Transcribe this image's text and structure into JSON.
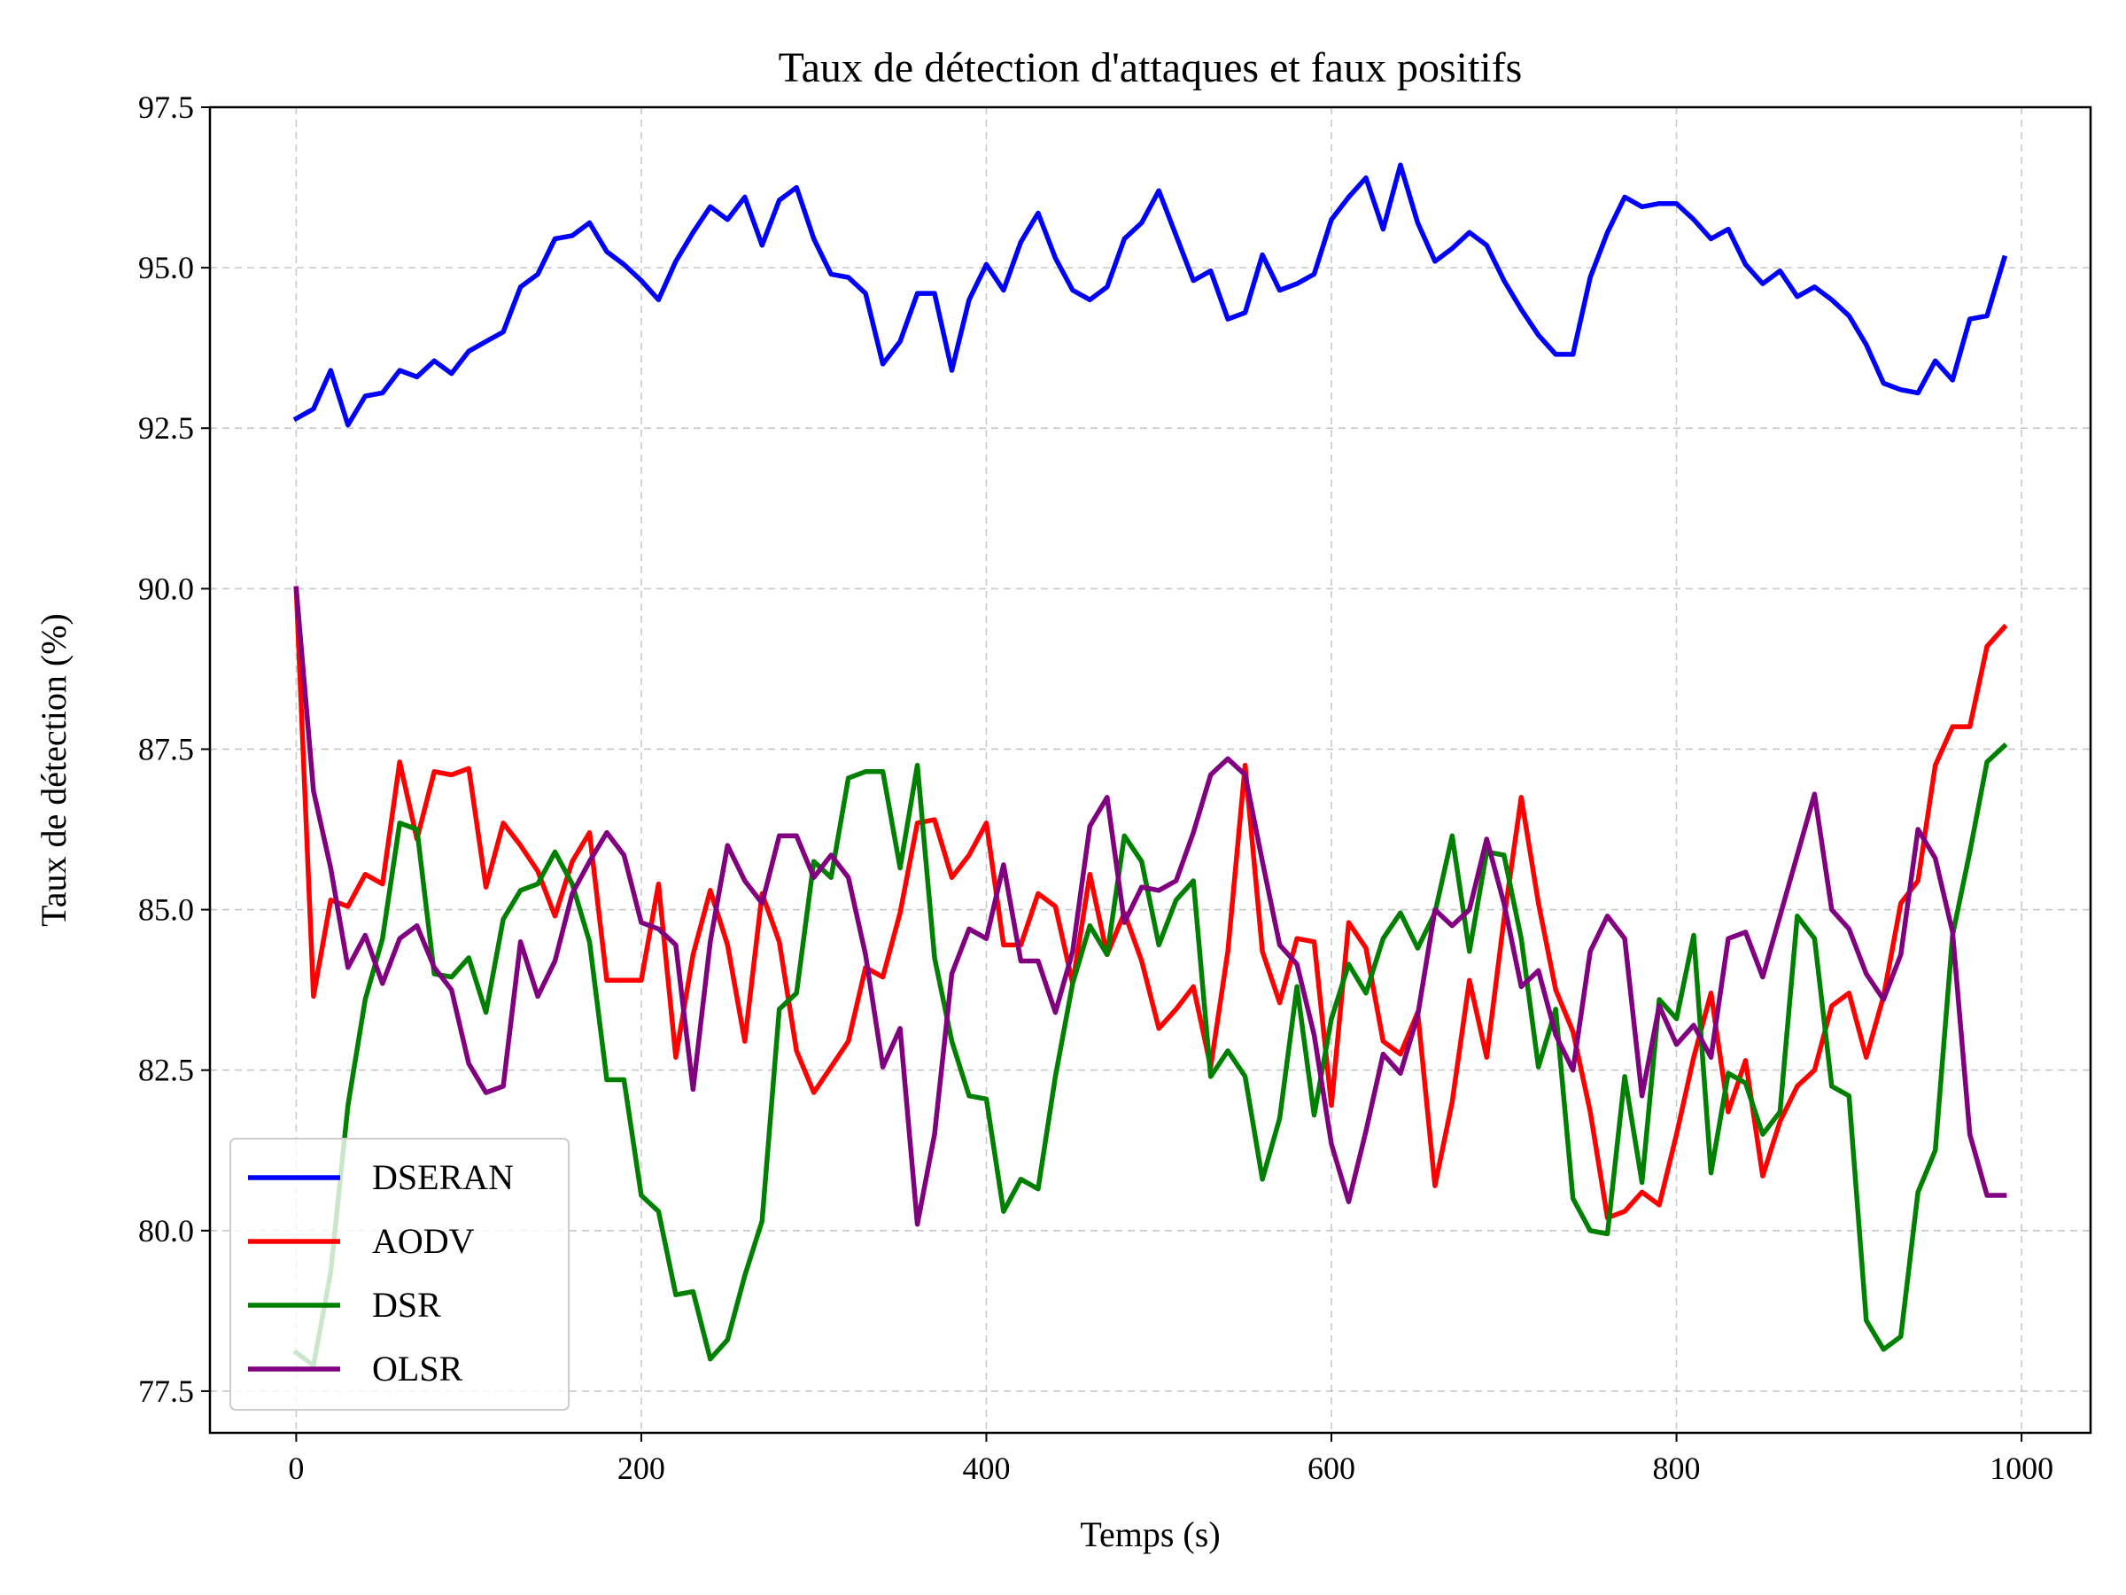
{
  "chart_data": {
    "type": "line",
    "title": "Taux de détection d'attaques et faux positifs",
    "xlabel": "Temps (s)",
    "ylabel": "Taux de détection (%)",
    "xlim": [
      -50,
      1040
    ],
    "ylim": [
      76.85,
      97.5
    ],
    "xticks": [
      0,
      200,
      400,
      600,
      800,
      1000
    ],
    "xtick_labels": [
      "0",
      "200",
      "400",
      "600",
      "800",
      "1000"
    ],
    "yticks": [
      77.5,
      80.0,
      82.5,
      85.0,
      87.5,
      90.0,
      92.5,
      95.0,
      97.5
    ],
    "ytick_labels": [
      "77.5",
      "80.0",
      "82.5",
      "85.0",
      "87.5",
      "90.0",
      "92.5",
      "95.0",
      "97.5"
    ],
    "grid": true,
    "legend_position": "lower-left",
    "x": [
      0,
      10,
      20,
      30,
      40,
      50,
      60,
      70,
      80,
      90,
      100,
      110,
      120,
      130,
      140,
      150,
      160,
      170,
      180,
      190,
      200,
      210,
      220,
      230,
      240,
      250,
      260,
      270,
      280,
      290,
      300,
      310,
      320,
      330,
      340,
      350,
      360,
      370,
      380,
      390,
      400,
      410,
      420,
      430,
      440,
      450,
      460,
      470,
      480,
      490,
      500,
      510,
      520,
      530,
      540,
      550,
      560,
      570,
      580,
      590,
      600,
      610,
      620,
      630,
      640,
      650,
      660,
      670,
      680,
      690,
      700,
      710,
      720,
      730,
      740,
      750,
      760,
      770,
      780,
      790,
      800,
      810,
      820,
      830,
      840,
      850,
      860,
      870,
      880,
      890,
      900,
      910,
      920,
      930,
      940,
      950,
      960,
      970,
      980,
      990
    ],
    "series": [
      {
        "name": "DSERAN",
        "color": "#0000ff",
        "values": [
          92.65,
          92.8,
          93.4,
          92.55,
          93.0,
          93.05,
          93.4,
          93.3,
          93.55,
          93.35,
          93.7,
          93.85,
          94.0,
          94.7,
          94.9,
          95.45,
          95.5,
          95.7,
          95.25,
          95.05,
          94.8,
          94.5,
          95.1,
          95.55,
          95.95,
          95.75,
          96.1,
          95.35,
          96.05,
          96.25,
          95.45,
          94.9,
          94.85,
          94.6,
          93.5,
          93.85,
          94.6,
          94.6,
          93.4,
          94.5,
          95.05,
          94.65,
          95.4,
          95.85,
          95.15,
          94.65,
          94.5,
          94.7,
          95.45,
          95.7,
          96.2,
          95.5,
          94.8,
          94.95,
          94.2,
          94.3,
          95.2,
          94.65,
          94.75,
          94.9,
          95.75,
          96.1,
          96.4,
          95.6,
          96.6,
          95.7,
          95.1,
          95.3,
          95.55,
          95.35,
          94.8,
          94.35,
          93.95,
          93.65,
          93.65,
          94.85,
          95.55,
          96.1,
          95.95,
          96.0,
          96.0,
          95.75,
          95.45,
          95.6,
          95.05,
          94.75,
          94.95,
          94.55,
          94.7,
          94.5,
          94.25,
          93.8,
          93.2,
          93.1,
          93.05,
          93.55,
          93.25,
          94.2,
          94.25,
          95.15
        ]
      },
      {
        "name": "AODV",
        "color": "#ff0000",
        "values": [
          90.0,
          83.65,
          85.15,
          85.05,
          85.55,
          85.4,
          87.3,
          86.1,
          87.15,
          87.1,
          87.2,
          85.35,
          86.35,
          86.0,
          85.6,
          84.9,
          85.75,
          86.2,
          83.9,
          83.9,
          83.9,
          85.4,
          82.7,
          84.3,
          85.3,
          84.45,
          82.95,
          85.25,
          84.5,
          82.8,
          82.15,
          82.55,
          82.95,
          84.1,
          83.95,
          84.95,
          86.35,
          86.4,
          85.5,
          85.85,
          86.35,
          84.45,
          84.45,
          85.25,
          85.05,
          83.85,
          85.55,
          84.3,
          84.95,
          84.2,
          83.15,
          83.45,
          83.8,
          82.55,
          84.35,
          87.25,
          84.35,
          83.55,
          84.55,
          84.5,
          81.95,
          84.8,
          84.4,
          82.95,
          82.75,
          83.4,
          80.7,
          82.0,
          83.9,
          82.7,
          84.85,
          86.75,
          85.1,
          83.75,
          83.1,
          81.85,
          80.2,
          80.3,
          80.6,
          80.4,
          81.5,
          82.7,
          83.7,
          81.85,
          82.65,
          80.85,
          81.7,
          82.25,
          82.5,
          83.5,
          83.7,
          82.7,
          83.65,
          85.1,
          85.45,
          87.25,
          87.85,
          87.85,
          89.1,
          89.4
        ]
      },
      {
        "name": "DSR",
        "color": "#008000",
        "values": [
          78.1,
          77.9,
          79.35,
          81.95,
          83.6,
          84.55,
          86.35,
          86.25,
          84.0,
          83.95,
          84.25,
          83.4,
          84.85,
          85.3,
          85.4,
          85.9,
          85.4,
          84.5,
          82.35,
          82.35,
          80.55,
          80.3,
          79.0,
          79.05,
          78.0,
          78.3,
          79.3,
          80.15,
          83.45,
          83.7,
          85.75,
          85.5,
          87.05,
          87.15,
          87.15,
          85.65,
          87.25,
          84.25,
          82.95,
          82.1,
          82.05,
          80.3,
          80.8,
          80.65,
          82.4,
          83.85,
          84.75,
          84.3,
          86.15,
          85.75,
          84.45,
          85.15,
          85.45,
          82.4,
          82.8,
          82.4,
          80.8,
          81.75,
          83.8,
          81.8,
          83.3,
          84.15,
          83.7,
          84.55,
          84.95,
          84.4,
          84.95,
          86.15,
          84.35,
          85.9,
          85.85,
          84.55,
          82.55,
          83.45,
          80.5,
          80.0,
          79.95,
          82.4,
          80.75,
          83.6,
          83.3,
          84.6,
          80.9,
          82.45,
          82.3,
          81.5,
          81.85,
          84.9,
          84.55,
          82.25,
          82.1,
          78.6,
          78.15,
          78.35,
          80.6,
          81.25,
          84.6,
          85.9,
          87.3,
          87.55
        ]
      },
      {
        "name": "OLSR",
        "color": "#800080",
        "values": [
          90.0,
          86.85,
          85.65,
          84.1,
          84.6,
          83.85,
          84.55,
          84.75,
          84.1,
          83.75,
          82.6,
          82.15,
          82.25,
          84.5,
          83.65,
          84.2,
          85.25,
          85.75,
          86.2,
          85.85,
          84.8,
          84.7,
          84.45,
          82.2,
          84.5,
          86.0,
          85.45,
          85.1,
          86.15,
          86.15,
          85.5,
          85.85,
          85.5,
          84.3,
          82.55,
          83.15,
          80.1,
          81.5,
          84.0,
          84.7,
          84.55,
          85.7,
          84.2,
          84.2,
          83.4,
          84.35,
          86.3,
          86.75,
          84.8,
          85.35,
          85.3,
          85.45,
          86.2,
          87.1,
          87.35,
          87.1,
          85.75,
          84.45,
          84.15,
          83.05,
          81.35,
          80.45,
          81.55,
          82.75,
          82.45,
          83.35,
          85.0,
          84.75,
          85.0,
          86.1,
          85.1,
          83.8,
          84.05,
          83.05,
          82.5,
          84.35,
          84.9,
          84.55,
          82.1,
          83.5,
          82.9,
          83.2,
          82.7,
          84.55,
          84.65,
          83.95,
          84.9,
          85.85,
          86.8,
          85.0,
          84.7,
          84.0,
          83.6,
          84.3,
          86.25,
          85.8,
          84.65,
          81.5,
          80.55,
          80.55
        ]
      }
    ]
  }
}
